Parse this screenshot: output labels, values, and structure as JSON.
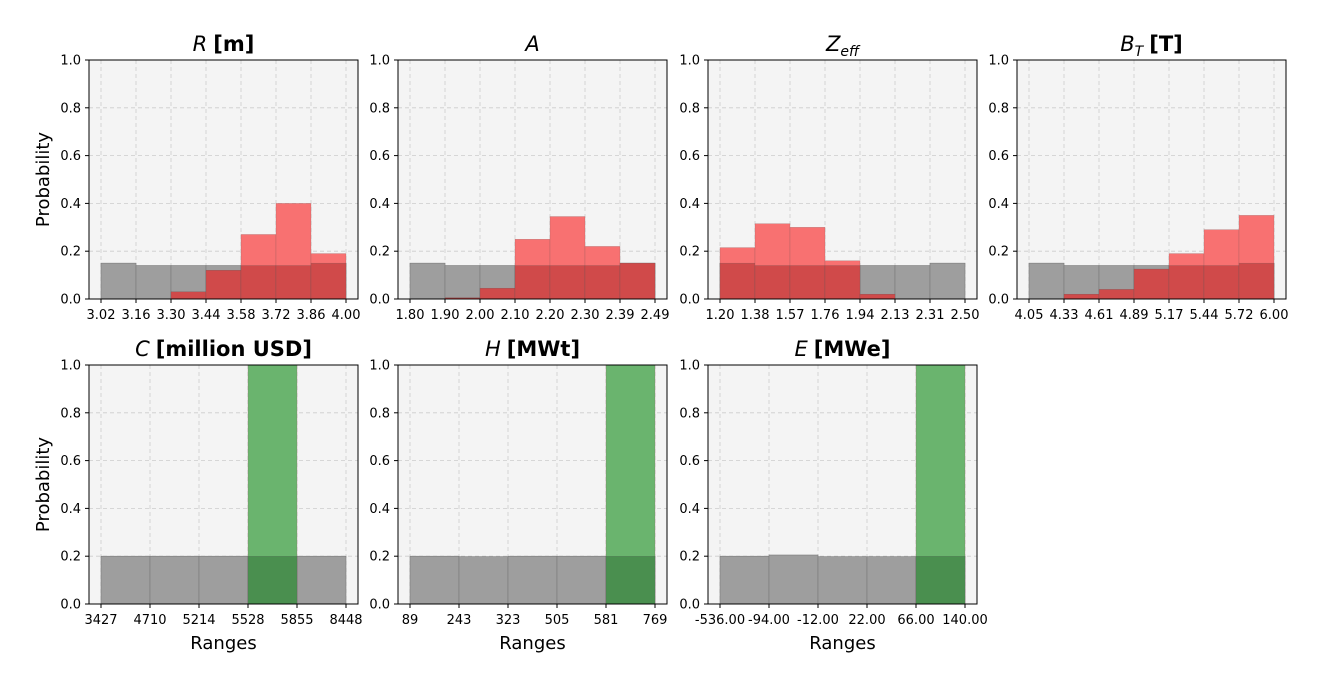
{
  "figure": {
    "ylabel": "Probability",
    "xlabel": "Ranges",
    "colors": {
      "panel_bg": "#f4f4f4",
      "grid": "#cccccc",
      "prior": "#9e9e9e",
      "posterior": "#f87171",
      "selected": "#6ab46e",
      "overlap_red": "#d04a4a",
      "overlap_green": "#4a8f4f"
    }
  },
  "chart_data": [
    {
      "type": "bar",
      "title_var": "R",
      "title_sub": "",
      "title_unit": "[m]",
      "tick_labels": [
        "3.02",
        "3.16",
        "3.30",
        "3.44",
        "3.58",
        "3.72",
        "3.86",
        "4.00"
      ],
      "ylim": [
        0,
        1
      ],
      "yticks": [
        "0.0",
        "0.2",
        "0.4",
        "0.6",
        "0.8",
        "1.0"
      ],
      "grid": true,
      "series": [
        {
          "role": "prior",
          "values": [
            0.15,
            0.14,
            0.14,
            0.14,
            0.14,
            0.14,
            0.15
          ]
        },
        {
          "role": "posterior",
          "values": [
            0.0,
            0.0,
            0.03,
            0.12,
            0.27,
            0.4,
            0.19
          ]
        }
      ]
    },
    {
      "type": "bar",
      "title_var": "A",
      "title_sub": "",
      "title_unit": "",
      "tick_labels": [
        "1.80",
        "1.90",
        "2.00",
        "2.10",
        "2.20",
        "2.30",
        "2.39",
        "2.49"
      ],
      "ylim": [
        0,
        1
      ],
      "yticks": [
        "0.0",
        "0.2",
        "0.4",
        "0.6",
        "0.8",
        "1.0"
      ],
      "grid": true,
      "series": [
        {
          "role": "prior",
          "values": [
            0.15,
            0.14,
            0.14,
            0.14,
            0.14,
            0.14,
            0.15
          ]
        },
        {
          "role": "posterior",
          "values": [
            0.0,
            0.005,
            0.045,
            0.25,
            0.345,
            0.22,
            0.15
          ]
        }
      ]
    },
    {
      "type": "bar",
      "title_var": "Z",
      "title_sub": "eff",
      "title_unit": "",
      "tick_labels": [
        "1.20",
        "1.38",
        "1.57",
        "1.76",
        "1.94",
        "2.13",
        "2.31",
        "2.50"
      ],
      "ylim": [
        0,
        1
      ],
      "yticks": [
        "0.0",
        "0.2",
        "0.4",
        "0.6",
        "0.8",
        "1.0"
      ],
      "grid": true,
      "series": [
        {
          "role": "prior",
          "values": [
            0.15,
            0.14,
            0.14,
            0.14,
            0.14,
            0.14,
            0.15
          ]
        },
        {
          "role": "posterior",
          "values": [
            0.215,
            0.315,
            0.3,
            0.16,
            0.02,
            0.0,
            0.0
          ]
        }
      ]
    },
    {
      "type": "bar",
      "title_var": "B",
      "title_sub": "T",
      "title_unit": "[T]",
      "tick_labels": [
        "4.05",
        "4.33",
        "4.61",
        "4.89",
        "5.17",
        "5.44",
        "5.72",
        "6.00"
      ],
      "ylim": [
        0,
        1
      ],
      "yticks": [
        "0.0",
        "0.2",
        "0.4",
        "0.6",
        "0.8",
        "1.0"
      ],
      "grid": true,
      "series": [
        {
          "role": "prior",
          "values": [
            0.15,
            0.14,
            0.14,
            0.14,
            0.14,
            0.14,
            0.15
          ]
        },
        {
          "role": "posterior",
          "values": [
            0.0,
            0.02,
            0.04,
            0.125,
            0.19,
            0.29,
            0.35
          ]
        }
      ]
    },
    {
      "type": "bar",
      "title_var": "C",
      "title_sub": "",
      "title_unit": "[million USD]",
      "tick_labels": [
        "3427",
        "4710",
        "5214",
        "5528",
        "5855",
        "8448"
      ],
      "ylim": [
        0,
        1
      ],
      "yticks": [
        "0.0",
        "0.2",
        "0.4",
        "0.6",
        "0.8",
        "1.0"
      ],
      "grid": true,
      "series": [
        {
          "role": "prior",
          "values": [
            0.2,
            0.2,
            0.2,
            0.2,
            0.2
          ]
        },
        {
          "role": "selected",
          "values": [
            0.0,
            0.0,
            0.0,
            1.0,
            0.0
          ]
        }
      ]
    },
    {
      "type": "bar",
      "title_var": "H",
      "title_sub": "",
      "title_unit": "[MWt]",
      "tick_labels": [
        "89",
        "243",
        "323",
        "505",
        "581",
        "769"
      ],
      "ylim": [
        0,
        1
      ],
      "yticks": [
        "0.0",
        "0.2",
        "0.4",
        "0.6",
        "0.8",
        "1.0"
      ],
      "grid": true,
      "series": [
        {
          "role": "prior",
          "values": [
            0.2,
            0.198,
            0.2,
            0.2,
            0.2
          ]
        },
        {
          "role": "selected",
          "values": [
            0.0,
            0.0,
            0.0,
            0.0,
            1.0
          ]
        }
      ]
    },
    {
      "type": "bar",
      "title_var": "E",
      "title_sub": "",
      "title_unit": "[MWe]",
      "tick_labels": [
        "-536.00",
        "-94.00",
        "-12.00",
        "22.00",
        "66.00",
        "140.00"
      ],
      "ylim": [
        0,
        1
      ],
      "yticks": [
        "0.0",
        "0.2",
        "0.4",
        "0.6",
        "0.8",
        "1.0"
      ],
      "grid": true,
      "series": [
        {
          "role": "prior",
          "values": [
            0.2,
            0.205,
            0.198,
            0.198,
            0.2
          ]
        },
        {
          "role": "selected",
          "values": [
            0.0,
            0.0,
            0.0,
            0.0,
            1.0
          ]
        }
      ]
    }
  ]
}
